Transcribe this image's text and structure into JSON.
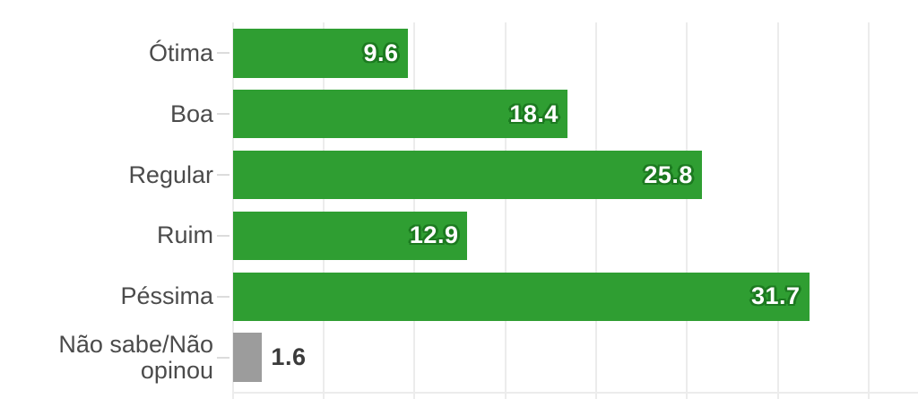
{
  "chart_data": {
    "type": "bar",
    "orientation": "horizontal",
    "title": "",
    "xlabel": "",
    "ylabel": "",
    "legend": "none",
    "grid": "vertical",
    "xlim": [
      0,
      35
    ],
    "grid_step": 5,
    "categories": [
      "Ótima",
      "Boa",
      "Regular",
      "Ruim",
      "Péssima",
      "Não sabe/Não opinou"
    ],
    "values": [
      9.6,
      18.4,
      25.8,
      12.9,
      31.7,
      1.6
    ],
    "bars": [
      {
        "label": "Ótima",
        "value": 9.6,
        "display": "9.6",
        "color": "#2f9e32",
        "label_style": "inside-white"
      },
      {
        "label": "Boa",
        "value": 18.4,
        "display": "18.4",
        "color": "#2f9e32",
        "label_style": "inside-white"
      },
      {
        "label": "Regular",
        "value": 25.8,
        "display": "25.8",
        "color": "#2f9e32",
        "label_style": "inside-white"
      },
      {
        "label": "Ruim",
        "value": 12.9,
        "display": "12.9",
        "color": "#2f9e32",
        "label_style": "inside-white"
      },
      {
        "label": "Péssima",
        "value": 31.7,
        "display": "31.7",
        "color": "#2f9e32",
        "label_style": "inside-white"
      },
      {
        "label": "Não sabe/Não opinou",
        "value": 1.6,
        "display": "1.6",
        "color": "#9c9c9c",
        "label_style": "outside-dark"
      }
    ],
    "palette": {
      "bar_green": "#2f9e32",
      "bar_gray": "#9c9c9c",
      "value_halo_green": "#1c7a20",
      "value_text_inside": "#ffffff",
      "value_text_outside": "#3b3b3b",
      "category_label": "#4b4b4b",
      "gridline": "#ececec",
      "tick": "#dcdcdc",
      "background": "#ffffff"
    }
  }
}
